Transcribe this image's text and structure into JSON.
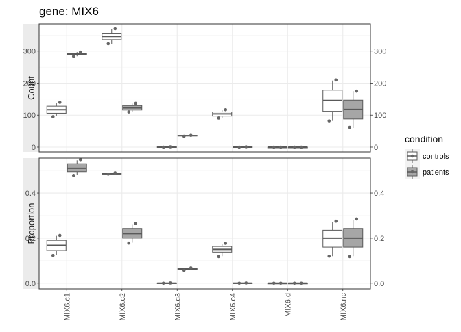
{
  "title": "gene: MIX6",
  "chart_data": {
    "type": "boxplot",
    "title": "gene: MIX6",
    "categories": [
      "MIX6.c1",
      "MIX6.c2",
      "MIX6.c3",
      "MIX6.c4",
      "MIX6.d",
      "MIX6.nc"
    ],
    "facet_variable": "measure",
    "legend": {
      "title": "condition",
      "position": "right",
      "entries": [
        {
          "label": "controls",
          "fill": "#ffffff"
        },
        {
          "label": "patients",
          "fill": "#a6a6a6"
        }
      ]
    },
    "grid": true,
    "panels": [
      {
        "ylabel": "Count",
        "ylim": [
          -15,
          385
        ],
        "yticks": [
          0,
          100,
          200,
          300
        ],
        "ytick_labels": [
          "0",
          "100",
          "200",
          "300"
        ],
        "series": [
          {
            "name": "controls",
            "boxes": [
              {
                "category": "MIX6.c1",
                "q1": 106,
                "median": 117,
                "q3": 128,
                "whisker_low": 98,
                "whisker_high": 138,
                "points": [
                  140,
                  95
                ]
              },
              {
                "category": "MIX6.c2",
                "q1": 336,
                "median": 346,
                "q3": 356,
                "whisker_low": 323,
                "whisker_high": 368,
                "points": [
                  370,
                  323
                ]
              },
              {
                "category": "MIX6.c3",
                "q1": 0,
                "median": 0,
                "q3": 1,
                "whisker_low": 0,
                "whisker_high": 1,
                "points": [
                  1,
                  0
                ]
              },
              {
                "category": "MIX6.c4",
                "q1": 97,
                "median": 104,
                "q3": 110,
                "whisker_low": 92,
                "whisker_high": 116,
                "points": [
                  117,
                  91
                ]
              },
              {
                "category": "MIX6.d",
                "q1": 0,
                "median": 0,
                "q3": 0,
                "whisker_low": 0,
                "whisker_high": 0,
                "points": [
                  0,
                  0
                ]
              },
              {
                "category": "MIX6.nc",
                "q1": 112,
                "median": 146,
                "q3": 178,
                "whisker_low": 82,
                "whisker_high": 208,
                "points": [
                  210,
                  82
                ]
              }
            ]
          },
          {
            "name": "patients",
            "boxes": [
              {
                "category": "MIX6.c1",
                "q1": 288,
                "median": 291,
                "q3": 294,
                "whisker_low": 284,
                "whisker_high": 297,
                "points": [
                  297,
                  284
                ]
              },
              {
                "category": "MIX6.c2",
                "q1": 116,
                "median": 123,
                "q3": 130,
                "whisker_low": 111,
                "whisker_high": 136,
                "points": [
                  137,
                  110
                ]
              },
              {
                "category": "MIX6.c3",
                "q1": 35,
                "median": 36,
                "q3": 37,
                "whisker_low": 34,
                "whisker_high": 37,
                "points": [
                  37,
                  34
                ]
              },
              {
                "category": "MIX6.c4",
                "q1": 0,
                "median": 0,
                "q3": 1,
                "whisker_low": 0,
                "whisker_high": 1,
                "points": [
                  1,
                  0
                ]
              },
              {
                "category": "MIX6.d",
                "q1": 0,
                "median": 0,
                "q3": 0,
                "whisker_low": 0,
                "whisker_high": 0,
                "points": [
                  0,
                  0
                ]
              },
              {
                "category": "MIX6.nc",
                "q1": 88,
                "median": 118,
                "q3": 147,
                "whisker_low": 60,
                "whisker_high": 175,
                "points": [
                  175,
                  62
                ]
              }
            ]
          }
        ]
      },
      {
        "ylabel": "Proportion",
        "ylim": [
          -0.025,
          0.555
        ],
        "yticks": [
          0.0,
          0.2,
          0.4
        ],
        "ytick_labels": [
          "0.0",
          "0.2",
          "0.4"
        ],
        "series": [
          {
            "name": "controls",
            "boxes": [
              {
                "category": "MIX6.c1",
                "q1": 0.145,
                "median": 0.168,
                "q3": 0.19,
                "whisker_low": 0.125,
                "whisker_high": 0.21,
                "points": [
                  0.212,
                  0.123
                ]
              },
              {
                "category": "MIX6.c2",
                "q1": 0.484,
                "median": 0.486,
                "q3": 0.489,
                "whisker_low": 0.483,
                "whisker_high": 0.49,
                "points": [
                  0.49,
                  0.484
                ]
              },
              {
                "category": "MIX6.c3",
                "q1": 0.0,
                "median": 0.0,
                "q3": 0.001,
                "whisker_low": 0.0,
                "whisker_high": 0.001,
                "points": [
                  0.001,
                  0.0
                ]
              },
              {
                "category": "MIX6.c4",
                "q1": 0.138,
                "median": 0.15,
                "q3": 0.163,
                "whisker_low": 0.12,
                "whisker_high": 0.175,
                "points": [
                  0.177,
                  0.118
                ]
              },
              {
                "category": "MIX6.d",
                "q1": 0.0,
                "median": 0.0,
                "q3": 0.0,
                "whisker_low": 0.0,
                "whisker_high": 0.0,
                "points": [
                  0.0,
                  0.0
                ]
              },
              {
                "category": "MIX6.nc",
                "q1": 0.16,
                "median": 0.2,
                "q3": 0.235,
                "whisker_low": 0.12,
                "whisker_high": 0.27,
                "points": [
                  0.275,
                  0.12
                ]
              }
            ]
          },
          {
            "name": "patients",
            "boxes": [
              {
                "category": "MIX6.c1",
                "q1": 0.495,
                "median": 0.51,
                "q3": 0.53,
                "whisker_low": 0.48,
                "whisker_high": 0.545,
                "points": [
                  0.548,
                  0.478
                ]
              },
              {
                "category": "MIX6.c2",
                "q1": 0.2,
                "median": 0.22,
                "q3": 0.243,
                "whisker_low": 0.18,
                "whisker_high": 0.262,
                "points": [
                  0.265,
                  0.178
                ]
              },
              {
                "category": "MIX6.c3",
                "q1": 0.06,
                "median": 0.063,
                "q3": 0.065,
                "whisker_low": 0.058,
                "whisker_high": 0.068,
                "points": [
                  0.068,
                  0.057
                ]
              },
              {
                "category": "MIX6.c4",
                "q1": 0.0,
                "median": 0.0,
                "q3": 0.001,
                "whisker_low": 0.0,
                "whisker_high": 0.001,
                "points": [
                  0.001,
                  0.0
                ]
              },
              {
                "category": "MIX6.d",
                "q1": 0.0,
                "median": 0.0,
                "q3": 0.0,
                "whisker_low": 0.0,
                "whisker_high": 0.0,
                "points": [
                  0.0,
                  0.0
                ]
              },
              {
                "category": "MIX6.nc",
                "q1": 0.16,
                "median": 0.2,
                "q3": 0.243,
                "whisker_low": 0.12,
                "whisker_high": 0.28,
                "points": [
                  0.285,
                  0.118
                ]
              }
            ]
          }
        ]
      }
    ]
  }
}
